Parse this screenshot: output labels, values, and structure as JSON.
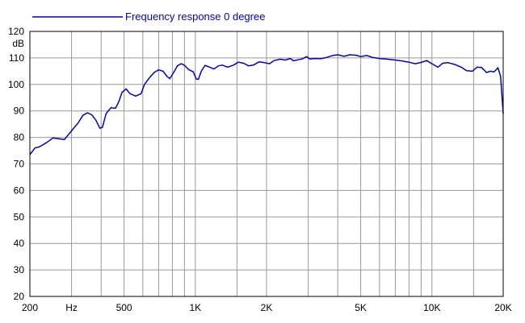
{
  "chart_data": {
    "type": "line",
    "title": "",
    "xlabel": "",
    "ylabel": "dB",
    "x_scale": "log",
    "xlim": [
      200,
      20000
    ],
    "ylim": [
      20,
      120
    ],
    "grid": true,
    "legend_position": "top-left",
    "y_ticks": [
      20,
      30,
      40,
      50,
      60,
      70,
      80,
      90,
      100,
      110,
      120
    ],
    "x_tick_labels": [
      {
        "value": 200,
        "label": "200"
      },
      {
        "value": 300,
        "label": "Hz"
      },
      {
        "value": 500,
        "label": "500"
      },
      {
        "value": 1000,
        "label": "1K"
      },
      {
        "value": 2000,
        "label": "2K"
      },
      {
        "value": 5000,
        "label": "5K"
      },
      {
        "value": 10000,
        "label": "10K"
      },
      {
        "value": 20000,
        "label": "20K"
      }
    ],
    "x_gridlines": [
      200,
      300,
      400,
      500,
      600,
      700,
      800,
      900,
      1000,
      1500,
      2000,
      3000,
      4000,
      5000,
      6000,
      7000,
      8000,
      9000,
      10000,
      15000,
      20000
    ],
    "series": [
      {
        "name": "Frequency response 0 degree",
        "color": "#0000cc",
        "points": [
          [
            200,
            73.5
          ],
          [
            210,
            76
          ],
          [
            220,
            76.5
          ],
          [
            235,
            78
          ],
          [
            250,
            79.8
          ],
          [
            265,
            79.5
          ],
          [
            280,
            79.2
          ],
          [
            300,
            82.5
          ],
          [
            320,
            85.5
          ],
          [
            335,
            88.3
          ],
          [
            350,
            89.3
          ],
          [
            365,
            88.5
          ],
          [
            380,
            86.5
          ],
          [
            395,
            83.5
          ],
          [
            405,
            83.8
          ],
          [
            420,
            89
          ],
          [
            440,
            91.2
          ],
          [
            460,
            91
          ],
          [
            475,
            93.5
          ],
          [
            490,
            97
          ],
          [
            510,
            98.3
          ],
          [
            530,
            96.5
          ],
          [
            560,
            95.6
          ],
          [
            590,
            96.5
          ],
          [
            610,
            100
          ],
          [
            640,
            102.5
          ],
          [
            670,
            104.5
          ],
          [
            700,
            105.5
          ],
          [
            730,
            105
          ],
          [
            760,
            103
          ],
          [
            780,
            102.2
          ],
          [
            810,
            104.5
          ],
          [
            840,
            107
          ],
          [
            870,
            107.8
          ],
          [
            900,
            107.2
          ],
          [
            940,
            105.5
          ],
          [
            980,
            104.8
          ],
          [
            1010,
            102
          ],
          [
            1030,
            101.9
          ],
          [
            1060,
            105
          ],
          [
            1100,
            107.2
          ],
          [
            1150,
            106.5
          ],
          [
            1200,
            105.8
          ],
          [
            1250,
            107
          ],
          [
            1300,
            107.3
          ],
          [
            1370,
            106.5
          ],
          [
            1450,
            107.3
          ],
          [
            1520,
            108.4
          ],
          [
            1600,
            108
          ],
          [
            1680,
            107
          ],
          [
            1760,
            107.3
          ],
          [
            1860,
            108.5
          ],
          [
            1960,
            108.2
          ],
          [
            2060,
            107.8
          ],
          [
            2150,
            109
          ],
          [
            2280,
            109.5
          ],
          [
            2400,
            109.2
          ],
          [
            2520,
            109.8
          ],
          [
            2600,
            108.9
          ],
          [
            2720,
            109.3
          ],
          [
            2830,
            109.6
          ],
          [
            2950,
            110.5
          ],
          [
            3050,
            109.6
          ],
          [
            3200,
            109.8
          ],
          [
            3400,
            109.7
          ],
          [
            3600,
            110.2
          ],
          [
            3800,
            110.9
          ],
          [
            4000,
            111.2
          ],
          [
            4250,
            110.6
          ],
          [
            4500,
            111.2
          ],
          [
            4800,
            111
          ],
          [
            5000,
            110.5
          ],
          [
            5300,
            110.9
          ],
          [
            5600,
            110.2
          ],
          [
            6000,
            109.8
          ],
          [
            6500,
            109.5
          ],
          [
            7000,
            109.2
          ],
          [
            7500,
            108.8
          ],
          [
            8000,
            108.4
          ],
          [
            8500,
            107.8
          ],
          [
            9000,
            108.3
          ],
          [
            9500,
            109
          ],
          [
            10000,
            107.8
          ],
          [
            10600,
            106.5
          ],
          [
            11100,
            108
          ],
          [
            11700,
            108.2
          ],
          [
            12500,
            107.5
          ],
          [
            13300,
            106.5
          ],
          [
            14000,
            105.2
          ],
          [
            14800,
            105
          ],
          [
            15500,
            106.5
          ],
          [
            16200,
            106.4
          ],
          [
            17000,
            104.5
          ],
          [
            17700,
            105
          ],
          [
            18300,
            104.7
          ],
          [
            19000,
            106.3
          ],
          [
            19500,
            103
          ],
          [
            20000,
            89
          ]
        ]
      }
    ]
  }
}
